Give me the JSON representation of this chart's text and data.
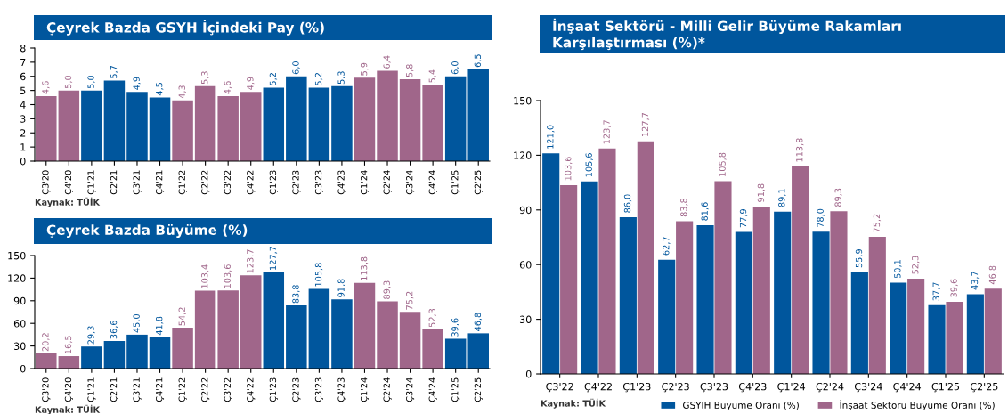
{
  "chart_data": [
    {
      "type": "bar",
      "title": "Çeyrek Bazda GSYH İçindeki Pay (%)",
      "categories": [
        "Ç3'20",
        "Ç4'20",
        "Ç1'21",
        "Ç2'21",
        "Ç3'21",
        "Ç4'21",
        "Ç1'22",
        "Ç2'22",
        "Ç3'22",
        "Ç4'22",
        "Ç1'23",
        "Ç2'23",
        "Ç3'23",
        "Ç4'23",
        "Ç1'24",
        "Ç2'24",
        "Ç3'24",
        "Ç4'24",
        "Ç1'25",
        "Ç2'25"
      ],
      "values": [
        4.6,
        5.0,
        5.0,
        5.7,
        4.9,
        4.5,
        4.3,
        5.3,
        4.6,
        4.9,
        5.2,
        6.0,
        5.2,
        5.3,
        5.9,
        6.4,
        5.8,
        5.4,
        6.0,
        6.5
      ],
      "value_labels": [
        "4,6",
        "5,0",
        "5,0",
        "5,7",
        "4,9",
        "4,5",
        "4,3",
        "5,3",
        "4,6",
        "4,9",
        "5,2",
        "6,0",
        "5,2",
        "5,3",
        "5,9",
        "6,4",
        "5,8",
        "5,4",
        "6,0",
        "6,5"
      ],
      "colors": [
        "#a0668a",
        "#a0668a",
        "#00569d",
        "#00569d",
        "#00569d",
        "#00569d",
        "#a0668a",
        "#a0668a",
        "#a0668a",
        "#a0668a",
        "#00569d",
        "#00569d",
        "#00569d",
        "#00569d",
        "#a0668a",
        "#a0668a",
        "#a0668a",
        "#a0668a",
        "#00569d",
        "#00569d"
      ],
      "ylim": [
        0,
        8
      ],
      "yticks": [
        0,
        1,
        2,
        3,
        4,
        5,
        6,
        7,
        8
      ],
      "grid": false,
      "annotations": [
        "Kaynak: TÜİK"
      ]
    },
    {
      "type": "bar",
      "title": "Çeyrek Bazda Büyüme (%)",
      "categories": [
        "Ç3'20",
        "Ç4'20",
        "Ç1'21",
        "Ç2'21",
        "Ç3'21",
        "Ç4'21",
        "Ç1'22",
        "Ç2'22",
        "Ç3'22",
        "Ç4'22",
        "Ç1'23",
        "Ç2'23",
        "Ç3'23",
        "Ç4'23",
        "Ç1'24",
        "Ç2'24",
        "Ç3'24",
        "Ç4'24",
        "Ç1'25",
        "Ç2'25"
      ],
      "values": [
        20.2,
        16.5,
        29.3,
        36.6,
        45.0,
        41.8,
        54.2,
        103.4,
        103.6,
        123.7,
        127.7,
        83.8,
        105.8,
        91.8,
        113.8,
        89.3,
        75.2,
        52.3,
        39.6,
        46.8
      ],
      "value_labels": [
        "20,2",
        "16,5",
        "29,3",
        "36,6",
        "45,0",
        "41,8",
        "54,2",
        "103,4",
        "103,6",
        "123,7",
        "127,7",
        "83,8",
        "105,8",
        "91,8",
        "113,8",
        "89,3",
        "75,2",
        "52,3",
        "39,6",
        "46,8"
      ],
      "colors": [
        "#a0668a",
        "#a0668a",
        "#00569d",
        "#00569d",
        "#00569d",
        "#00569d",
        "#a0668a",
        "#a0668a",
        "#a0668a",
        "#a0668a",
        "#00569d",
        "#00569d",
        "#00569d",
        "#00569d",
        "#a0668a",
        "#a0668a",
        "#a0668a",
        "#a0668a",
        "#00569d",
        "#00569d"
      ],
      "ylim": [
        0,
        150
      ],
      "yticks": [
        0,
        30,
        60,
        90,
        120,
        150
      ],
      "grid": false,
      "annotations": [
        "Kaynak: TÜİK"
      ]
    },
    {
      "type": "bar",
      "title": "İnşaat Sektörü - Milli Gelir Büyüme Rakamları\nKarşılaştırması (%)*",
      "categories": [
        "Ç3'22",
        "Ç4'22",
        "Ç1'23",
        "Ç2'23",
        "Ç3'23",
        "Ç4'23",
        "Ç1'24",
        "Ç2'24",
        "Ç3'24",
        "Ç4'24",
        "Ç1'25",
        "Ç2'25"
      ],
      "series": [
        {
          "name": "GSYIH Büyüme Oranı (%)",
          "color": "#00569d",
          "values": [
            121.0,
            105.6,
            86.0,
            62.7,
            81.6,
            77.9,
            89.1,
            78.0,
            55.9,
            50.1,
            37.7,
            43.7
          ],
          "value_labels": [
            "121,0",
            "105,6",
            "86,0",
            "62,7",
            "81,6",
            "77,9",
            "89,1",
            "78,0",
            "55,9",
            "50,1",
            "37,7",
            "43,7"
          ]
        },
        {
          "name": "İnşaat Sektörü Büyüme Oranı (%)",
          "color": "#a0668a",
          "values": [
            103.6,
            123.7,
            127.7,
            83.8,
            105.8,
            91.8,
            113.8,
            89.3,
            75.2,
            52.3,
            39.6,
            46.8
          ],
          "value_labels": [
            "103,6",
            "123,7",
            "127,7",
            "83,8",
            "105,8",
            "91,8",
            "113,8",
            "89,3",
            "75,2",
            "52,3",
            "39,6",
            "46,8"
          ]
        }
      ],
      "ylim": [
        0,
        150
      ],
      "yticks": [
        0,
        30,
        60,
        90,
        120,
        150
      ],
      "grid": false,
      "legend": "bottom",
      "annotations": [
        "Kaynak: TÜİK"
      ]
    }
  ]
}
